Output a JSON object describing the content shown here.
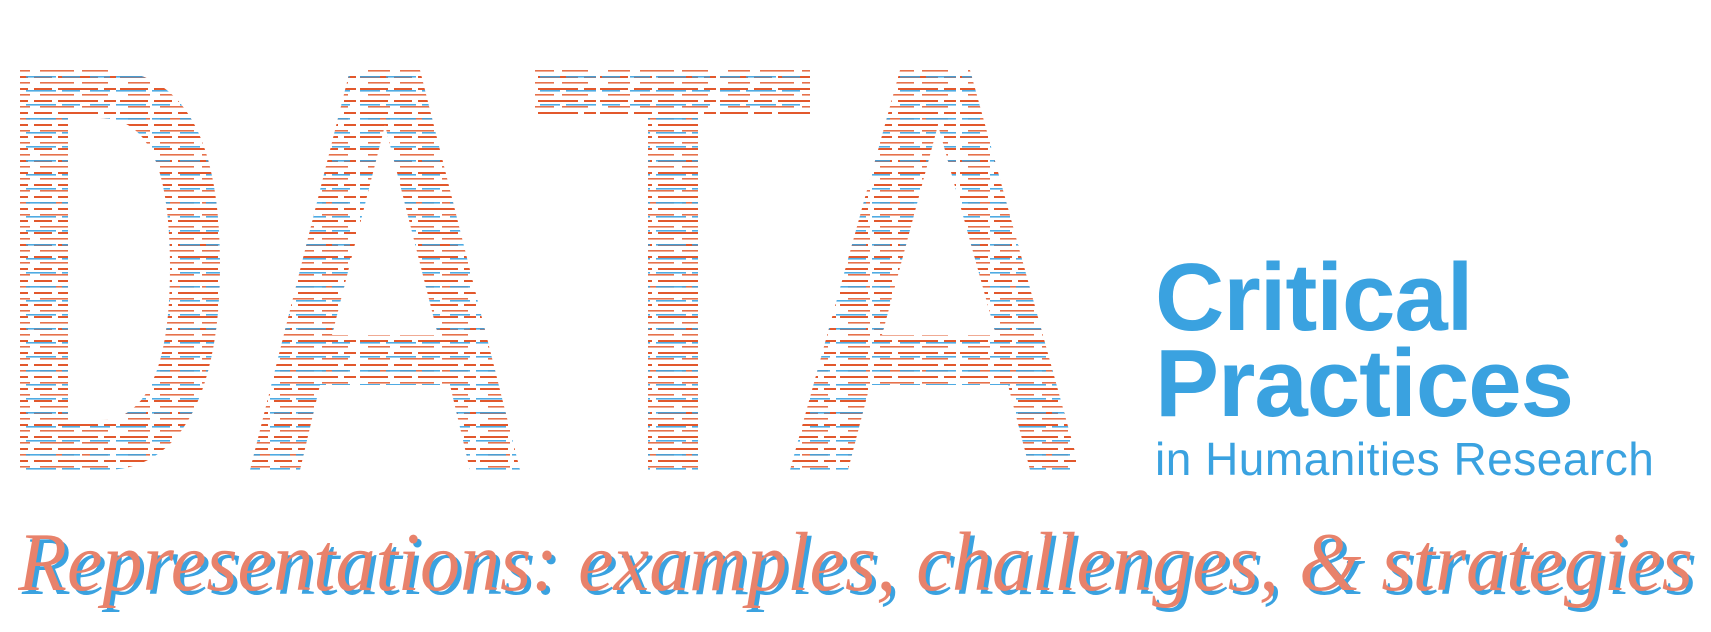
{
  "colors": {
    "accent_blue": "#3aa2e0",
    "accent_red": "#e2582c",
    "subtitle_fill": "#e8826b",
    "subtitle_shadow": "#3aa2e0"
  },
  "background_word": "DATA",
  "brand": {
    "line1": "Critical",
    "line2": "Practices",
    "line3": "in Humanities Research"
  },
  "subtitle": "Representations: examples, challenges, & strategies"
}
